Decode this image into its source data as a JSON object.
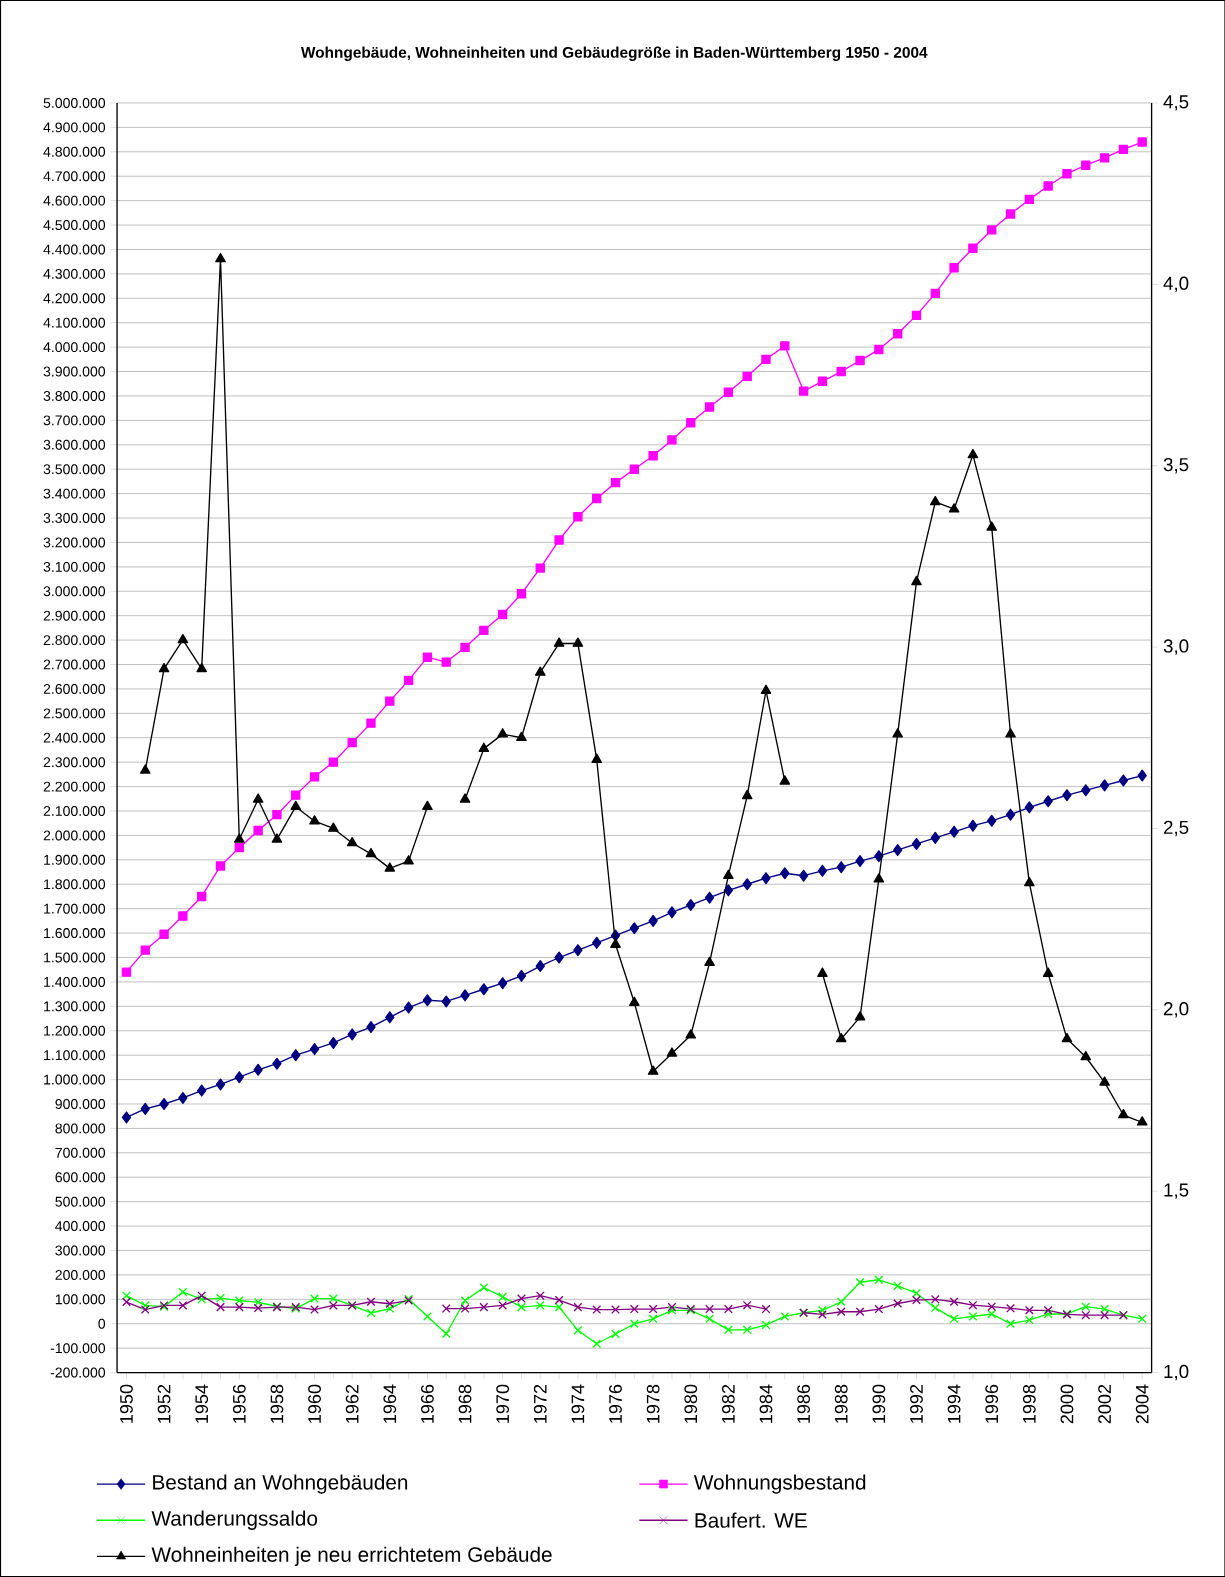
{
  "chart_data": {
    "type": "line",
    "title": "Wohngebäude, Wohneinheiten und Gebäudegröße in Baden-Württemberg 1950 - 2004",
    "categories": [
      "1950",
      null,
      "1952",
      null,
      "1954",
      null,
      "1956",
      null,
      "1958",
      null,
      "1960",
      null,
      "1962",
      null,
      "1964",
      null,
      "1966",
      null,
      "1968",
      null,
      "1970",
      null,
      "1972",
      null,
      "1974",
      null,
      "1976",
      null,
      "1978",
      null,
      "1980",
      null,
      "1982",
      null,
      "1984",
      null,
      "1986",
      null,
      "1988",
      null,
      "1990",
      null,
      "1992",
      null,
      "1994",
      null,
      "1996",
      null,
      "1998",
      null,
      "2000",
      null,
      "2002",
      null,
      "2004"
    ],
    "series": [
      {
        "name": "Bestand an Wohngebäuden",
        "color": "#000080",
        "marker": "diamond",
        "values": [
          845000,
          880000,
          900000,
          925000,
          955000,
          980000,
          1010000,
          1040000,
          1065000,
          1100000,
          1125000,
          1150000,
          1185000,
          1215000,
          1255000,
          1295000,
          1325000,
          1320000,
          1345000,
          1370000,
          1395000,
          1425000,
          1465000,
          1500000,
          1530000,
          1560000,
          1590000,
          1620000,
          1650000,
          1685000,
          1715000,
          1745000,
          1775000,
          1800000,
          1825000,
          1845000,
          1835000,
          1855000,
          1870000,
          1895000,
          1915000,
          1940000,
          1965000,
          1990000,
          2015000,
          2040000,
          2060000,
          2085000,
          2115000,
          2140000,
          2165000,
          2185000,
          2205000,
          2225000,
          2245000
        ]
      },
      {
        "name": "Wohnungsbestand",
        "color": "#ff00ff",
        "marker": "square",
        "values": [
          1440000,
          1530000,
          1595000,
          1670000,
          1750000,
          1875000,
          1950000,
          2020000,
          2085000,
          2165000,
          2240000,
          2300000,
          2380000,
          2460000,
          2550000,
          2635000,
          2730000,
          2710000,
          2770000,
          2840000,
          2905000,
          2990000,
          3095000,
          3210000,
          3305000,
          3380000,
          3445000,
          3500000,
          3555000,
          3620000,
          3690000,
          3755000,
          3815000,
          3880000,
          3950000,
          4005000,
          3820000,
          3860000,
          3900000,
          3945000,
          3990000,
          4055000,
          4130000,
          4220000,
          4325000,
          4405000,
          4480000,
          4545000,
          4605000,
          4660000,
          4710000,
          4745000,
          4775000,
          4810000,
          4840000
        ]
      },
      {
        "name": "Wanderungssaldo",
        "color": "#00ff00",
        "marker": "cross",
        "values": [
          115000,
          75000,
          70000,
          130000,
          100000,
          105000,
          95000,
          88000,
          71000,
          62000,
          103000,
          103000,
          75000,
          44000,
          62000,
          101000,
          30000,
          -41000,
          95000,
          148000,
          110000,
          68000,
          75000,
          68000,
          -27000,
          -82000,
          -42000,
          0,
          20000,
          55000,
          55000,
          20000,
          -25000,
          -25000,
          -5000,
          30000,
          45000,
          55000,
          90000,
          170000,
          180000,
          155000,
          125000,
          65000,
          20000,
          30000,
          40000,
          0,
          15000,
          40000,
          40000,
          70000,
          60000,
          35000,
          20000
        ]
      },
      {
        "name": "Baufert. WE",
        "color": "#800080",
        "marker": "cross",
        "values": [
          89000,
          58000,
          75000,
          75000,
          115000,
          68000,
          68000,
          64000,
          68000,
          68000,
          58000,
          75000,
          75000,
          90000,
          82000,
          95000,
          null,
          62000,
          62000,
          68000,
          75000,
          103000,
          115000,
          97000,
          68000,
          58000,
          58000,
          60000,
          60000,
          68000,
          60000,
          60000,
          60000,
          76000,
          60000,
          null,
          45000,
          38000,
          49000,
          49000,
          60000,
          83000,
          97000,
          100000,
          90000,
          76000,
          70000,
          63000,
          55000,
          55000,
          38000,
          35000,
          35000,
          35000,
          null
        ]
      },
      {
        "name": "Wohneinheiten je neu errichtetem  Gebäude",
        "color": "#000000",
        "marker": "triangle",
        "axis": "y2",
        "values": [
          null,
          2.66,
          2.94,
          3.02,
          2.94,
          4.07,
          2.47,
          2.58,
          2.47,
          2.56,
          2.52,
          2.5,
          2.46,
          2.43,
          2.39,
          2.41,
          2.56,
          null,
          2.58,
          2.72,
          2.76,
          2.75,
          2.93,
          3.01,
          3.01,
          2.69,
          2.18,
          2.02,
          1.83,
          1.88,
          1.93,
          2.13,
          2.37,
          2.59,
          2.88,
          2.63,
          null,
          2.1,
          1.92,
          1.98,
          2.36,
          2.76,
          3.18,
          3.4,
          3.38,
          3.53,
          3.33,
          2.76,
          2.35,
          2.1,
          1.92,
          1.87,
          1.8,
          1.71,
          1.69
        ]
      }
    ],
    "ylim": [
      -200000,
      5000000
    ],
    "yticks": [
      {
        "value": -200000,
        "label": "-200.000"
      },
      {
        "value": -100000,
        "label": "-100.000"
      },
      0,
      {
        "value": 100000,
        "label": "100.000"
      },
      {
        "value": 200000,
        "label": "200.000"
      },
      {
        "value": 300000,
        "label": "300.000"
      },
      {
        "value": 400000,
        "label": "400.000"
      },
      {
        "value": 500000,
        "label": "500.000"
      },
      {
        "value": 600000,
        "label": "600.000"
      },
      {
        "value": 700000,
        "label": "700.000"
      },
      {
        "value": 800000,
        "label": "800.000"
      },
      {
        "value": 900000,
        "label": "900.000"
      },
      {
        "value": 1000000,
        "label": "1.000.000"
      },
      {
        "value": 1100000,
        "label": "1.100.000"
      },
      {
        "value": 1200000,
        "label": "1.200.000"
      },
      {
        "value": 1300000,
        "label": "1.300.000"
      },
      {
        "value": 1400000,
        "label": "1.400.000"
      },
      {
        "value": 1500000,
        "label": "1.500.000"
      },
      {
        "value": 1600000,
        "label": "1.600.000"
      },
      {
        "value": 1700000,
        "label": "1.700.000"
      },
      {
        "value": 1800000,
        "label": "1.800.000"
      },
      {
        "value": 1900000,
        "label": "1.900.000"
      },
      {
        "value": 2000000,
        "label": "2.000.000"
      },
      {
        "value": 2100000,
        "label": "2.100.000"
      },
      {
        "value": 2200000,
        "label": "2.200.000"
      },
      {
        "value": 2300000,
        "label": "2.300.000"
      },
      {
        "value": 2400000,
        "label": "2.400.000"
      },
      {
        "value": 2500000,
        "label": "2.500.000"
      },
      {
        "value": 2600000,
        "label": "2.600.000"
      },
      {
        "value": 2700000,
        "label": "2.700.000"
      },
      {
        "value": 2800000,
        "label": "2.800.000"
      },
      {
        "value": 2900000,
        "label": "2.900.000"
      },
      {
        "value": 3000000,
        "label": "3.000.000"
      },
      {
        "value": 3100000,
        "label": "3.100.000"
      },
      {
        "value": 3200000,
        "label": "3.200.000"
      },
      {
        "value": 3300000,
        "label": "3.300.000"
      },
      {
        "value": 3400000,
        "label": "3.400.000"
      },
      {
        "value": 3500000,
        "label": "3.500.000"
      },
      {
        "value": 3600000,
        "label": "3.600.000"
      },
      {
        "value": 3700000,
        "label": "3.700.000"
      },
      {
        "value": 3800000,
        "label": "3.800.000"
      },
      {
        "value": 3900000,
        "label": "3.900.000"
      },
      {
        "value": 4000000,
        "label": "4.000.000"
      },
      {
        "value": 4100000,
        "label": "4.100.000"
      },
      {
        "value": 4200000,
        "label": "4.200.000"
      },
      {
        "value": 4300000,
        "label": "4.300.000"
      },
      {
        "value": 4400000,
        "label": "4.400.000"
      },
      {
        "value": 4500000,
        "label": "4.500.000"
      },
      {
        "value": 4600000,
        "label": "4.600.000"
      },
      {
        "value": 4700000,
        "label": "4.700.000"
      },
      {
        "value": 4800000,
        "label": "4.800.000"
      },
      {
        "value": 4900000,
        "label": "4.900.000"
      },
      {
        "value": 5000000,
        "label": "5.000.000"
      }
    ],
    "y2lim": [
      1.0,
      4.5
    ],
    "y2ticks": [
      {
        "value": 1.0,
        "label": "1,0"
      },
      {
        "value": 1.5,
        "label": "1,5"
      },
      {
        "value": 2.0,
        "label": "2,0"
      },
      {
        "value": 2.5,
        "label": "2,5"
      },
      {
        "value": 3.0,
        "label": "3,0"
      },
      {
        "value": 3.5,
        "label": "3,5"
      },
      {
        "value": 4.0,
        "label": "4,0"
      },
      {
        "value": 4.5,
        "label": "4,5"
      }
    ],
    "grid": "y",
    "legend": "bottom"
  }
}
